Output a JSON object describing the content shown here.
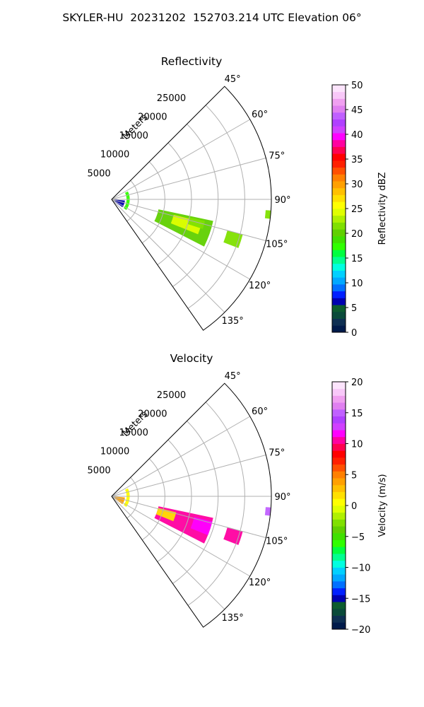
{
  "suptitle": "SKYLER-HU  20231202  152703.214 UTC Elevation 06°",
  "chart_data": [
    {
      "type": "heatmap",
      "subtype": "polar-sector PPI",
      "title": "Reflectivity",
      "radial_axis_label": "Meters",
      "radial_ticks": [
        5000,
        10000,
        15000,
        20000,
        25000
      ],
      "radial_tick_labels": [
        "5000",
        "10000",
        "15000",
        "20000",
        "25000"
      ],
      "radial_max": 30000,
      "azimuth_range_deg": [
        45,
        145
      ],
      "azimuth_ticks": [
        45,
        60,
        75,
        90,
        105,
        120,
        135
      ],
      "azimuth_tick_labels": [
        "45°",
        "60°",
        "75°",
        "90°",
        "105°",
        "120°",
        "135°"
      ],
      "grid": true,
      "colorbar": {
        "label": "Reflectivity dBZ",
        "min": 0,
        "max": 50,
        "ticks": [
          0,
          5,
          10,
          15,
          20,
          25,
          30,
          35,
          40,
          45,
          50
        ],
        "tick_labels": [
          "0",
          "5",
          "10",
          "15",
          "20",
          "25",
          "30",
          "35",
          "40",
          "45",
          "50"
        ],
        "colors": [
          "#001a4a",
          "#0e2f52",
          "#0a4a3a",
          "#0d5c2f",
          "#0000b0",
          "#0020ff",
          "#0070ff",
          "#00a8ff",
          "#00d0ff",
          "#00ffe0",
          "#00ff90",
          "#00ff40",
          "#30ff00",
          "#40e000",
          "#60d000",
          "#80e000",
          "#b0f000",
          "#e0ff00",
          "#ffff00",
          "#ffe000",
          "#ffc000",
          "#ffa000",
          "#ff8000",
          "#ff5000",
          "#ff2000",
          "#ff0000",
          "#ff0050",
          "#ff00a0",
          "#ff00ff",
          "#d040ff",
          "#b040ff",
          "#c060ff",
          "#e080f0",
          "#f0a0f0",
          "#f8c8f8",
          "#fce4fc"
        ]
      },
      "echo_regions": [
        {
          "az_min": 102,
          "az_max": 117,
          "r_min": 9000,
          "r_max": 19500,
          "value": 20
        },
        {
          "az_min": 104,
          "az_max": 112,
          "r_min": 12000,
          "r_max": 17500,
          "value": 24
        },
        {
          "az_min": 103,
          "az_max": 108,
          "r_min": 15000,
          "r_max": 18000,
          "value": 22
        },
        {
          "az_min": 105,
          "az_max": 111,
          "r_min": 22500,
          "r_max": 25500,
          "value": 21
        },
        {
          "az_min": 94,
          "az_max": 97,
          "r_min": 29000,
          "r_max": 30000,
          "value": 22
        },
        {
          "az_min": 95,
          "az_max": 126,
          "r_min": 600,
          "r_max": 2500,
          "value": 6
        },
        {
          "az_min": 64,
          "az_max": 126,
          "r_min": 2800,
          "r_max": 3400,
          "value": 18
        }
      ]
    },
    {
      "type": "heatmap",
      "subtype": "polar-sector PPI",
      "title": "Velocity",
      "radial_axis_label": "Meters",
      "radial_ticks": [
        5000,
        10000,
        15000,
        20000,
        25000
      ],
      "radial_tick_labels": [
        "5000",
        "10000",
        "15000",
        "20000",
        "25000"
      ],
      "radial_max": 30000,
      "azimuth_range_deg": [
        45,
        145
      ],
      "azimuth_ticks": [
        45,
        60,
        75,
        90,
        105,
        120,
        135
      ],
      "azimuth_tick_labels": [
        "45°",
        "60°",
        "75°",
        "90°",
        "105°",
        "120°",
        "135°"
      ],
      "grid": true,
      "colorbar": {
        "label": "Velocity (m/s)",
        "min": -20,
        "max": 20,
        "ticks": [
          -20,
          -15,
          -10,
          -5,
          0,
          5,
          10,
          15,
          20
        ],
        "tick_labels": [
          "−20",
          "−15",
          "−10",
          "−5",
          "0",
          "5",
          "10",
          "15",
          "20"
        ],
        "colors": [
          "#001a4a",
          "#0e2f52",
          "#0a4a3a",
          "#0d5c2f",
          "#0000b0",
          "#0020ff",
          "#0070ff",
          "#00a8ff",
          "#00d0ff",
          "#00ffe0",
          "#00ff90",
          "#00ff40",
          "#30ff00",
          "#40e000",
          "#60d000",
          "#80e000",
          "#b0f000",
          "#e0ff00",
          "#ffff00",
          "#ffe000",
          "#ffc000",
          "#ffa000",
          "#ff8000",
          "#ff5000",
          "#ff2000",
          "#ff0000",
          "#ff0050",
          "#ff00a0",
          "#ff00ff",
          "#d040ff",
          "#b040ff",
          "#c060ff",
          "#e080f0",
          "#f0a0f0",
          "#f8c8f8",
          "#fce4fc"
        ]
      },
      "echo_regions": [
        {
          "az_min": 102,
          "az_max": 117,
          "r_min": 9000,
          "r_max": 19500,
          "value": 10
        },
        {
          "az_min": 104,
          "az_max": 112,
          "r_min": 9000,
          "r_max": 12500,
          "value": 2
        },
        {
          "az_min": 104,
          "az_max": 112,
          "r_min": 16000,
          "r_max": 19500,
          "value": 12
        },
        {
          "az_min": 105,
          "az_max": 111,
          "r_min": 22500,
          "r_max": 25500,
          "value": 11
        },
        {
          "az_min": 94,
          "az_max": 97,
          "r_min": 29000,
          "r_max": 30000,
          "value": 15
        },
        {
          "az_min": 95,
          "az_max": 126,
          "r_min": 600,
          "r_max": 2500,
          "value": 4
        },
        {
          "az_min": 64,
          "az_max": 126,
          "r_min": 2800,
          "r_max": 3400,
          "value": 1
        }
      ]
    }
  ]
}
